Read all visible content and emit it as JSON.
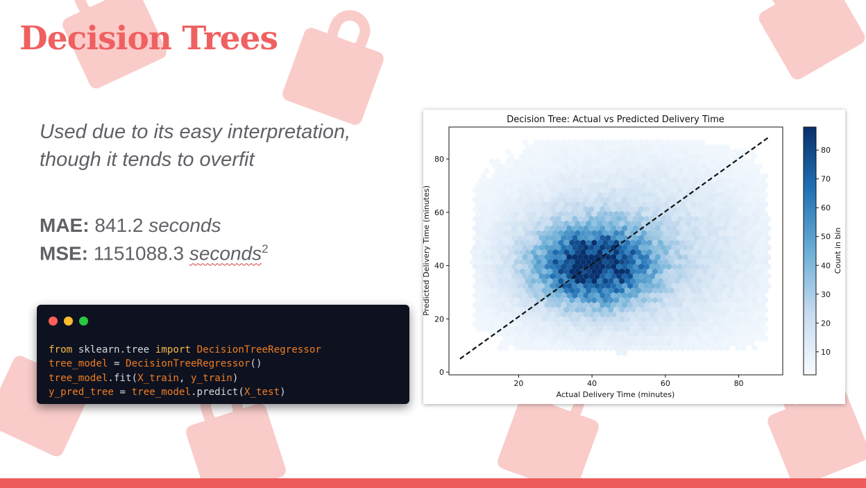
{
  "slide": {
    "title": "Decision Trees",
    "subtitle": "Used due to its easy interpretation, though it tends to overfit",
    "metrics": [
      {
        "label": "MAE:",
        "value": "841.2",
        "unit": "seconds",
        "sup": ""
      },
      {
        "label": "MSE:",
        "value": "1151088.3",
        "unit": "seconds",
        "sup": "2"
      }
    ],
    "background_icon": "shopping-bag-icon",
    "accent_color": "#f06060",
    "decor_color": "#f8c3c1"
  },
  "code_window": {
    "controls": [
      {
        "name": "close-dot",
        "color": "#ff5f57"
      },
      {
        "name": "minimize-dot",
        "color": "#febc2e"
      },
      {
        "name": "maximize-dot",
        "color": "#28c840"
      }
    ],
    "lines": [
      [
        {
          "t": "kw",
          "s": "from"
        },
        {
          "t": "plain",
          "s": " sklearn.tree "
        },
        {
          "t": "kw",
          "s": "import"
        },
        {
          "t": "plain",
          "s": " "
        },
        {
          "t": "fn",
          "s": "DecisionTreeRegressor"
        }
      ],
      [
        {
          "t": "fn",
          "s": "tree_model"
        },
        {
          "t": "plain",
          "s": " = "
        },
        {
          "t": "fn",
          "s": "DecisionTreeRegressor"
        },
        {
          "t": "plain",
          "s": "()"
        }
      ],
      [
        {
          "t": "fn",
          "s": "tree_model"
        },
        {
          "t": "plain",
          "s": ".fit("
        },
        {
          "t": "fn",
          "s": "X_train"
        },
        {
          "t": "plain",
          "s": ", "
        },
        {
          "t": "fn",
          "s": "y_train"
        },
        {
          "t": "plain",
          "s": ")"
        }
      ],
      [
        {
          "t": "fn",
          "s": "y_pred_tree"
        },
        {
          "t": "plain",
          "s": " = "
        },
        {
          "t": "fn",
          "s": "tree_model"
        },
        {
          "t": "plain",
          "s": ".predict("
        },
        {
          "t": "fn",
          "s": "X_test"
        },
        {
          "t": "plain",
          "s": ")"
        }
      ]
    ]
  },
  "chart_data": {
    "type": "heatmap",
    "subtype": "hexbin",
    "title": "Decision Tree: Actual vs Predicted Delivery Time",
    "xlabel": "Actual Delivery Time (minutes)",
    "ylabel": "Predicted Delivery Time (minutes)",
    "xlim": [
      1,
      92
    ],
    "ylim": [
      -1,
      92
    ],
    "xticks": [
      20,
      40,
      60,
      80
    ],
    "yticks": [
      0,
      20,
      40,
      60,
      80
    ],
    "grid": false,
    "colormap": "Blues",
    "color_light": "#f7fbff",
    "color_dark": "#08306b",
    "colorbar": {
      "label": "Count in bin",
      "ticks": [
        10,
        20,
        30,
        40,
        50,
        60,
        70,
        80
      ],
      "range": [
        2,
        88
      ]
    },
    "density_center": [
      40,
      40
    ],
    "density_peak": 88,
    "reference_line": {
      "style": "dashed",
      "color": "#111111",
      "x": [
        4,
        88
      ],
      "y": [
        5,
        88
      ]
    }
  }
}
